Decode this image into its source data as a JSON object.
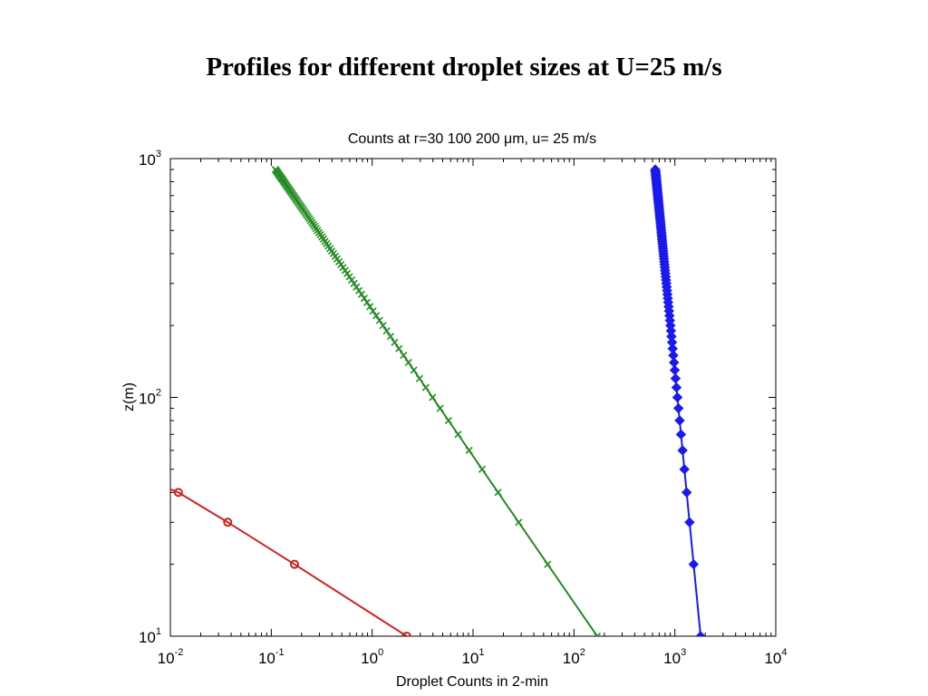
{
  "slide_title": "Profiles for different droplet sizes at U=25 m/s",
  "chart_data": {
    "type": "line",
    "title": "Counts at r=30 100 200 μm, u= 25 m/s",
    "xlabel": "Droplet Counts in 2-min",
    "ylabel": "z(m)",
    "xscale": "log",
    "yscale": "log",
    "xlim": [
      0.01,
      10000
    ],
    "ylim": [
      10,
      1000
    ],
    "x_ticks": [
      {
        "base": "10",
        "exp": "-2"
      },
      {
        "base": "10",
        "exp": "-1"
      },
      {
        "base": "10",
        "exp": "0"
      },
      {
        "base": "10",
        "exp": "1"
      },
      {
        "base": "10",
        "exp": "2"
      },
      {
        "base": "10",
        "exp": "3"
      },
      {
        "base": "10",
        "exp": "4"
      }
    ],
    "y_ticks": [
      {
        "base": "10",
        "exp": "1"
      },
      {
        "base": "10",
        "exp": "2"
      },
      {
        "base": "10",
        "exp": "3"
      }
    ],
    "grid": false,
    "box": true,
    "series": [
      {
        "color": "#cc2222",
        "marker": "circle",
        "line_extends_to": [
          0.009,
          42
        ],
        "points": [
          [
            2.2,
            10
          ],
          [
            0.17,
            20
          ],
          [
            0.037,
            30
          ],
          [
            0.012,
            40
          ]
        ]
      },
      {
        "color": "#228B22",
        "marker": "x",
        "z_start": 10,
        "z_end": 900,
        "z_step": 10,
        "x_at_z_start": 170,
        "x_at_z_end": 0.11,
        "points": []
      },
      {
        "color": "#1a1aee",
        "marker": "diamond",
        "z_start": 10,
        "z_end": 900,
        "z_step": 10,
        "x_at_z_start": 1800,
        "x_at_z_end": 640,
        "points": []
      }
    ]
  }
}
